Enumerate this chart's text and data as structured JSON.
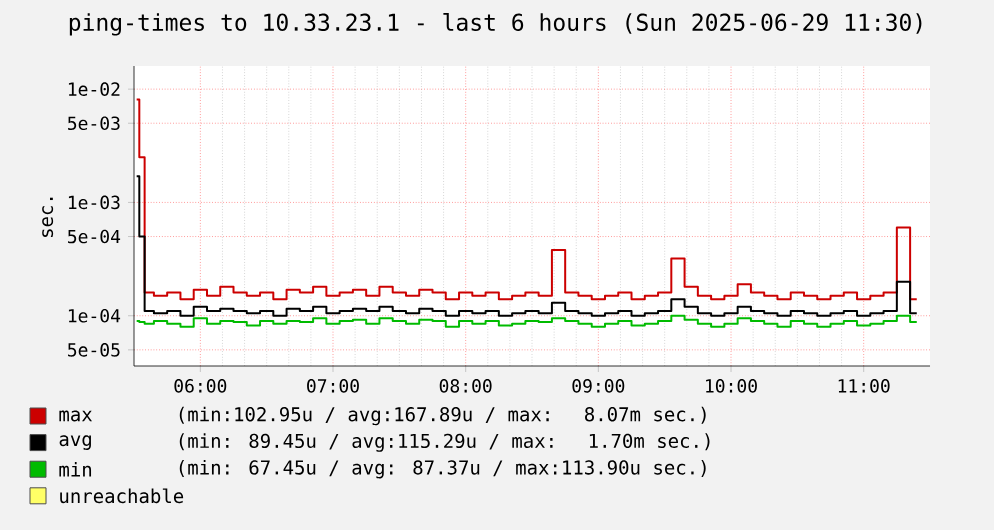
{
  "chart_data": {
    "type": "step",
    "title": "ping-times to 10.33.23.1 - last 6 hours (Sun 2025-06-29 11:30)",
    "ylabel": "sec.",
    "log": "y",
    "grid": true,
    "legend": "bottom",
    "x": [
      5.52,
      5.56,
      5.6,
      5.7,
      5.8,
      5.9,
      6.0,
      6.1,
      6.2,
      6.3,
      6.4,
      6.5,
      6.6,
      6.7,
      6.8,
      6.9,
      7.0,
      7.1,
      7.2,
      7.3,
      7.4,
      7.5,
      7.6,
      7.7,
      7.8,
      7.9,
      8.0,
      8.1,
      8.2,
      8.3,
      8.4,
      8.5,
      8.6,
      8.7,
      8.8,
      8.9,
      9.0,
      9.1,
      9.2,
      9.3,
      9.4,
      9.5,
      9.6,
      9.7,
      9.8,
      9.9,
      10.0,
      10.1,
      10.2,
      10.3,
      10.4,
      10.5,
      10.6,
      10.7,
      10.8,
      10.9,
      11.0,
      11.1,
      11.2,
      11.3,
      11.4
    ],
    "xlim": [
      5.5,
      11.5
    ],
    "ylim": [
      3.6e-05,
      0.016
    ],
    "xticks": [
      {
        "value": 6,
        "label": "06:00"
      },
      {
        "value": 7,
        "label": "07:00"
      },
      {
        "value": 8,
        "label": "08:00"
      },
      {
        "value": 9,
        "label": "09:00"
      },
      {
        "value": 10,
        "label": "10:00"
      },
      {
        "value": 11,
        "label": "11:00"
      }
    ],
    "yticks": [
      {
        "value": 5e-05,
        "label": "5e-05"
      },
      {
        "value": 0.0001,
        "label": "1e-04"
      },
      {
        "value": 0.0005,
        "label": "5e-04"
      },
      {
        "value": 0.001,
        "label": "1e-03"
      },
      {
        "value": 0.005,
        "label": "5e-03"
      },
      {
        "value": 0.01,
        "label": "1e-02"
      }
    ],
    "series": [
      {
        "name": "max",
        "color": "#cc0000",
        "values": [
          0.0081,
          0.0025,
          0.00016,
          0.00015,
          0.00016,
          0.00014,
          0.00017,
          0.00015,
          0.00018,
          0.00016,
          0.00015,
          0.00016,
          0.00014,
          0.00017,
          0.00016,
          0.00018,
          0.00015,
          0.00016,
          0.00017,
          0.00015,
          0.00018,
          0.00016,
          0.00015,
          0.00017,
          0.00016,
          0.00014,
          0.00016,
          0.00015,
          0.00016,
          0.00014,
          0.00015,
          0.00016,
          0.00015,
          0.00038,
          0.00016,
          0.00015,
          0.00014,
          0.00015,
          0.00016,
          0.00014,
          0.00015,
          0.00016,
          0.00032,
          0.00018,
          0.00015,
          0.00014,
          0.00015,
          0.00019,
          0.00016,
          0.00015,
          0.00014,
          0.00016,
          0.00015,
          0.00014,
          0.00015,
          0.00016,
          0.00014,
          0.00015,
          0.00016,
          0.0006,
          0.00014
        ]
      },
      {
        "name": "avg",
        "color": "#000000",
        "values": [
          0.0017,
          0.0005,
          0.00011,
          0.000105,
          0.00011,
          0.0001,
          0.00012,
          0.00011,
          0.000115,
          0.00011,
          0.000105,
          0.00011,
          0.0001,
          0.000115,
          0.00011,
          0.00012,
          0.000105,
          0.00011,
          0.000115,
          0.00011,
          0.00012,
          0.00011,
          0.000105,
          0.000115,
          0.00011,
          0.0001,
          0.00011,
          0.000105,
          0.00011,
          0.0001,
          0.000105,
          0.00011,
          0.000105,
          0.00013,
          0.00011,
          0.000105,
          0.0001,
          0.000105,
          0.00011,
          0.0001,
          0.000105,
          0.00011,
          0.00014,
          0.00012,
          0.000105,
          0.0001,
          0.000105,
          0.00012,
          0.00011,
          0.000105,
          0.0001,
          0.00011,
          0.000105,
          0.0001,
          0.000105,
          0.00011,
          0.0001,
          0.000105,
          0.00011,
          0.0002,
          0.000105
        ]
      },
      {
        "name": "min",
        "color": "#00bb00",
        "values": [
          9e-05,
          8.8e-05,
          8.5e-05,
          9e-05,
          8.5e-05,
          8e-05,
          9.5e-05,
          8.5e-05,
          9e-05,
          8.8e-05,
          8.2e-05,
          9e-05,
          8.5e-05,
          9e-05,
          8.8e-05,
          9.5e-05,
          8.5e-05,
          9e-05,
          9.2e-05,
          8.5e-05,
          9.5e-05,
          9e-05,
          8.5e-05,
          9.2e-05,
          9e-05,
          8e-05,
          9e-05,
          8.5e-05,
          9e-05,
          8.2e-05,
          8.5e-05,
          9e-05,
          8.8e-05,
          9.5e-05,
          9e-05,
          8.5e-05,
          8e-05,
          8.5e-05,
          9e-05,
          8.2e-05,
          8.5e-05,
          9e-05,
          0.0001,
          9.2e-05,
          8.5e-05,
          8e-05,
          8.5e-05,
          9.5e-05,
          9e-05,
          8.5e-05,
          8e-05,
          9e-05,
          8.5e-05,
          8e-05,
          8.5e-05,
          9e-05,
          8.2e-05,
          8.5e-05,
          9e-05,
          0.0001,
          8.8e-05
        ]
      },
      {
        "name": "unreachable",
        "color": "#ffff66",
        "values": [
          null,
          null,
          null,
          null,
          null,
          null,
          null,
          null,
          null,
          null,
          null,
          null,
          null,
          null,
          null,
          null,
          null,
          null,
          null,
          null,
          null,
          null,
          null,
          null,
          null,
          null,
          null,
          null,
          null,
          null,
          null,
          null,
          null,
          null,
          null,
          null,
          null,
          null,
          null,
          null,
          null,
          null,
          null,
          null,
          null,
          null,
          null,
          null,
          null,
          null,
          null,
          null,
          null,
          null,
          null,
          null,
          null,
          null,
          null,
          null,
          null
        ]
      }
    ],
    "annotations": [
      "(min:102.95u / avg:167.89u / max:  8.07m sec.)",
      "(min: 89.45u / avg:115.29u / max:  1.70m sec.)",
      "(min: 67.45u / avg: 87.37u / max:113.90u sec.)"
    ]
  }
}
